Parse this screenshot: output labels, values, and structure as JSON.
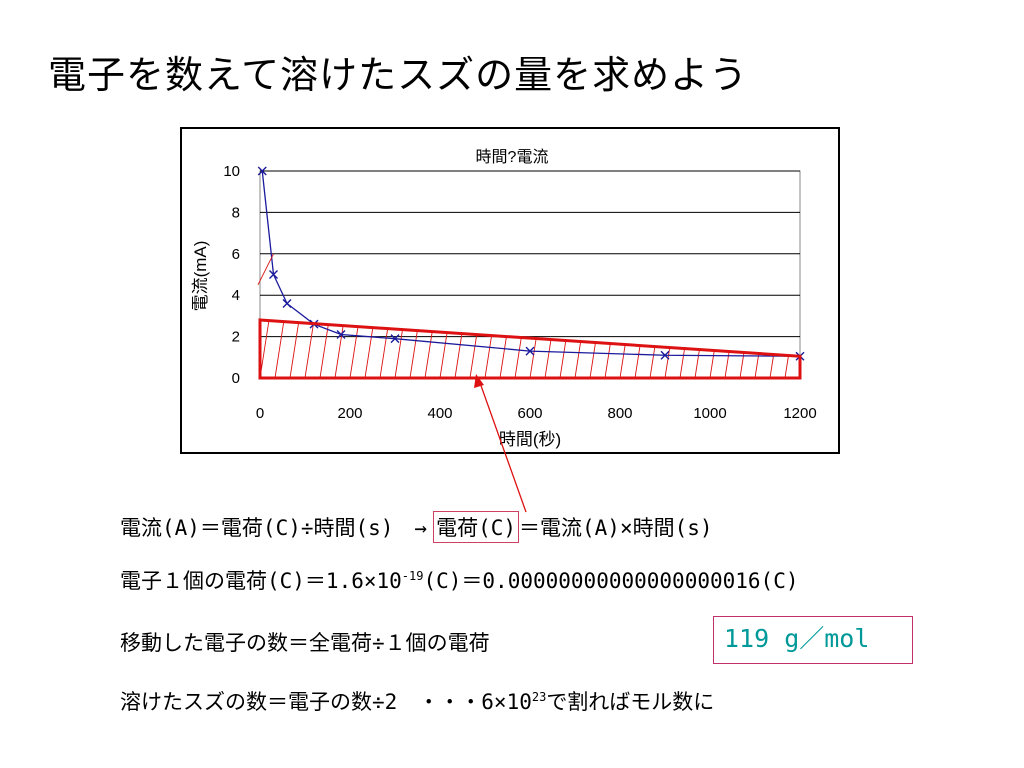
{
  "slide": {
    "title": "電子を数えて溶けたスズの量を求めよう"
  },
  "chart_data": {
    "type": "line",
    "title": "時間?電流",
    "xlabel": "時間(秒)",
    "ylabel": "電流(mA)",
    "x": [
      5,
      30,
      60,
      120,
      180,
      300,
      600,
      900,
      1200
    ],
    "series": [
      {
        "values": [
          10,
          5,
          3.6,
          2.6,
          2.1,
          1.9,
          1.3,
          1.1,
          1.05
        ]
      }
    ],
    "xlim": [
      0,
      1200
    ],
    "ylim": [
      0,
      10
    ],
    "xticks": [
      "0",
      "200",
      "400",
      "600",
      "800",
      "1000",
      "1200"
    ],
    "yticks": [
      "0",
      "2",
      "4",
      "6",
      "8",
      "10"
    ],
    "grid": "horizontal",
    "annotation_trapezoid": {
      "x": [
        0,
        1200
      ],
      "y_top": [
        2.8,
        1.05
      ]
    },
    "colors": {
      "series": "#1a1a9c",
      "annotation": "#dd1111",
      "grid": "#000000"
    }
  },
  "lines": {
    "l1a": "電流(A)＝電荷(C)÷時間(s)　→",
    "l1b": "電荷(C)",
    "l1c": "＝電流(A)×時間(s)",
    "l2a": "電子１個の電荷(C)＝1.6×10",
    "l2exp": "-19",
    "l2b": "(C)＝0.00000000000000000016(C)",
    "l3": "移動した電子の数＝全電荷÷１個の電荷",
    "l4a": "溶けたスズの数＝電子の数÷2　・・・6×10",
    "l4exp": "23",
    "l4b": "で割ればモル数に"
  },
  "result": "119 g／mol"
}
